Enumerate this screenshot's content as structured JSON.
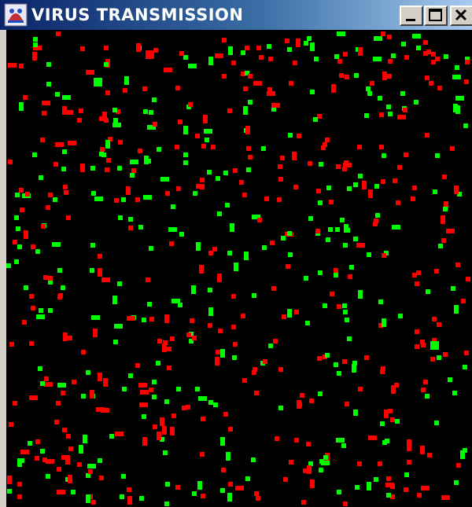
{
  "window": {
    "title": "VIRUS TRANSMISSION",
    "controls": {
      "minimize_icon": "minimize-icon",
      "maximize_icon": "maximize-icon",
      "close_icon": "close-icon"
    }
  },
  "simulation": {
    "background_color": "#000000",
    "infected_color": "#ff0000",
    "healthy_color": "#00ff00"
  }
}
